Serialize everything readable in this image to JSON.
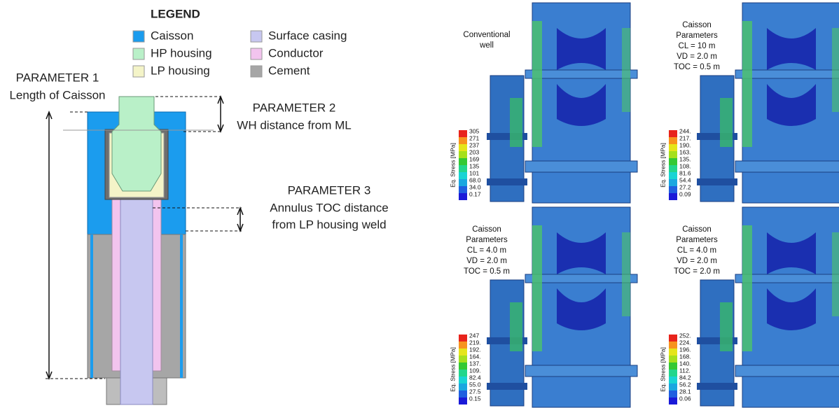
{
  "legend": {
    "title": "LEGEND",
    "items": [
      {
        "label": "Caisson",
        "color": "#1b9cee"
      },
      {
        "label": "HP housing",
        "color": "#b9f0c8"
      },
      {
        "label": "LP housing",
        "color": "#f4f4c8"
      },
      {
        "label": "Surface casing",
        "color": "#c7c7f0"
      },
      {
        "label": "Conductor",
        "color": "#f2c4ee"
      },
      {
        "label": "Cement",
        "color": "#a6a6a6"
      }
    ]
  },
  "parameters": [
    {
      "title": "PARAMETER 1",
      "description": [
        "Length of Caisson"
      ]
    },
    {
      "title": "PARAMETER 2",
      "description": [
        "WH distance from ML"
      ]
    },
    {
      "title": "PARAMETER 3",
      "description": [
        "Annulus TOC distance",
        "from LP housing weld"
      ]
    }
  ],
  "panels": [
    {
      "caption": [
        "Conventional",
        "well"
      ],
      "scale_title": "Eq. Stress [MPa]",
      "scale_labels": [
        "305",
        "271",
        "237",
        "203",
        "169",
        "135",
        "101",
        "68.0",
        "34.0",
        "0.17"
      ]
    },
    {
      "caption": [
        "Caisson",
        "Parameters",
        "CL = 10 m",
        "VD = 2.0 m",
        "TOC = 0.5 m"
      ],
      "scale_title": "Eq. Stress [MPa]",
      "scale_labels": [
        "244.",
        "217.",
        "190.",
        "163.",
        "135.",
        "108.",
        "81.6",
        "54.4",
        "27.2",
        "0.09"
      ]
    },
    {
      "caption": [
        "Caisson",
        "Parameters",
        "CL = 4.0 m",
        "VD = 2.0 m",
        "TOC = 0.5 m"
      ],
      "scale_title": "Eq. Stress [MPa]",
      "scale_labels": [
        "247",
        "219.",
        "192.",
        "164.",
        "137.",
        "109.",
        "82.4",
        "55.0",
        "27.5",
        "0.15"
      ]
    },
    {
      "caption": [
        "Caisson",
        "Parameters",
        "CL = 4.0 m",
        "VD = 2.0 m",
        "TOC = 2.0 m"
      ],
      "scale_title": "Eq. Stress [MPa]",
      "scale_labels": [
        "252.",
        "224.",
        "196.",
        "168.",
        "140.",
        "112.",
        "84.2",
        "56.2",
        "28.1",
        "0.06"
      ]
    }
  ]
}
